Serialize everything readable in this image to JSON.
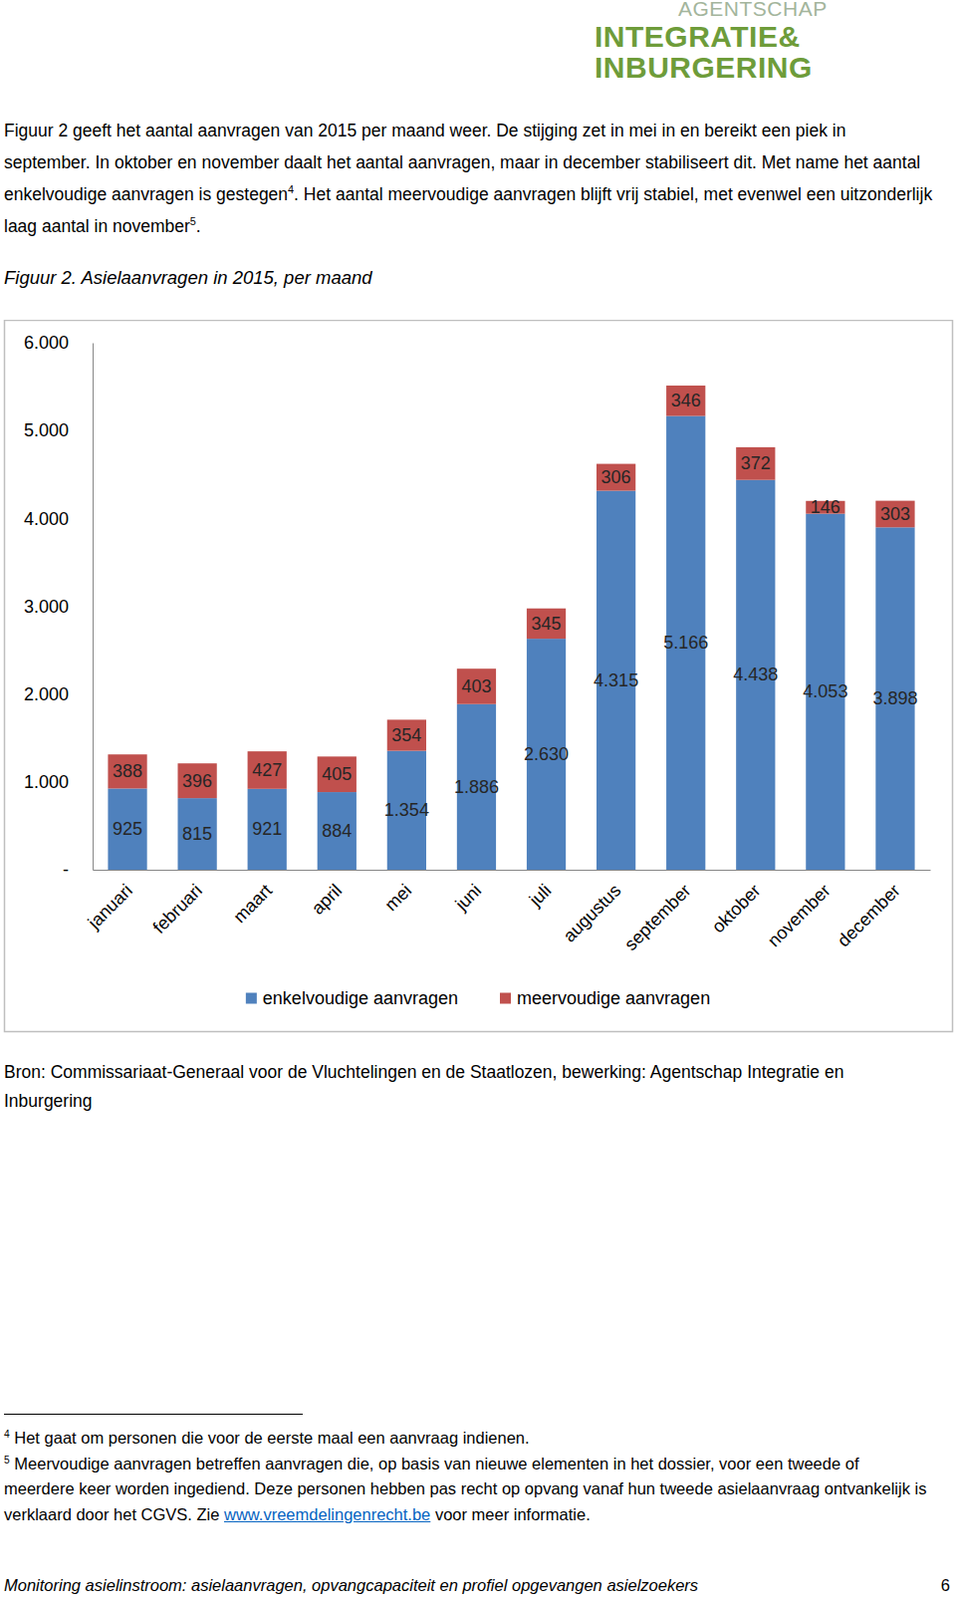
{
  "logo": [
    "AGENTSCHAP",
    "INTEGRATIE&",
    "INBURGERING"
  ],
  "intro": [
    {
      "text": "Figuur 2 geeft het aantal aanvragen van 2015 per maand weer. De stijging zet in mei in en bereikt een piek in september. In oktober en november daalt het aantal aanvragen, maar in december stabiliseert dit. Met name het aantal enkelvoudige aanvragen is gestegen",
      "sup": "4"
    },
    {
      "text": ". Het aantal meervoudige aanvragen blijft vrij stabiel, met evenwel een uitzonderlijk laag aantal in november",
      "sup": "5"
    },
    {
      "text": "."
    }
  ],
  "chart_data": {
    "type": "bar",
    "title": "Figuur 2. Asielaanvragen in 2015, per maand",
    "categories": [
      "januari",
      "februari",
      "maart",
      "april",
      "mei",
      "juni",
      "juli",
      "augustus",
      "september",
      "oktober",
      "november",
      "december"
    ],
    "series": [
      {
        "name": "enkelvoudige aanvragen",
        "color": "#4f81bd",
        "values": [
          925,
          815,
          921,
          884,
          1354,
          1886,
          2630,
          4315,
          5166,
          4438,
          4053,
          3898
        ],
        "value_labels": [
          "925",
          "815",
          "921",
          "884",
          "1.354",
          "1.886",
          "2.630",
          "4.315",
          "5.166",
          "4.438",
          "4.053",
          "3.898"
        ]
      },
      {
        "name": "meervoudige aanvragen",
        "color": "#c0504d",
        "values": [
          388,
          396,
          427,
          405,
          354,
          403,
          345,
          306,
          346,
          372,
          146,
          303
        ]
      }
    ],
    "stacked": true,
    "data_labels": true,
    "legend": "bottom",
    "grid": false,
    "ylim": [
      0,
      6000
    ],
    "yticks": [
      {
        "value": 0,
        "label": "-"
      },
      {
        "value": 1000,
        "label": "1.000"
      },
      {
        "value": 2000,
        "label": "2.000"
      },
      {
        "value": 3000,
        "label": "3.000"
      },
      {
        "value": 4000,
        "label": "4.000"
      },
      {
        "value": 5000,
        "label": "5.000"
      },
      {
        "value": 6000,
        "label": "6.000"
      }
    ]
  },
  "source": "Bron: Commissariaat-Generaal voor de Vluchtelingen en de Staatlozen, bewerking: Agentschap Integratie en Inburgering",
  "footnotes": [
    {
      "number": "4",
      "segments": [
        {
          "text": "Het gaat om personen die voor de eerste maal een aanvraag indienen."
        }
      ]
    },
    {
      "number": "5",
      "segments": [
        {
          "text": "Meervoudige aanvragen betreffen aanvragen die, op basis van nieuwe elementen in het dossier, voor een tweede of meerdere keer worden ingediend. Deze personen hebben pas recht op opvang vanaf hun tweede asielaanvraag ontvankelijk is verklaard door het CGVS. Zie "
        },
        {
          "text": "www.vreemdelingenrecht.be",
          "link": true
        },
        {
          "text": " voor meer informatie."
        }
      ]
    }
  ],
  "footer": {
    "text": "Monitoring asielinstroom: asielaanvragen, opvangcapaciteit en profiel opgevangen asielzoekers",
    "page": "6"
  }
}
